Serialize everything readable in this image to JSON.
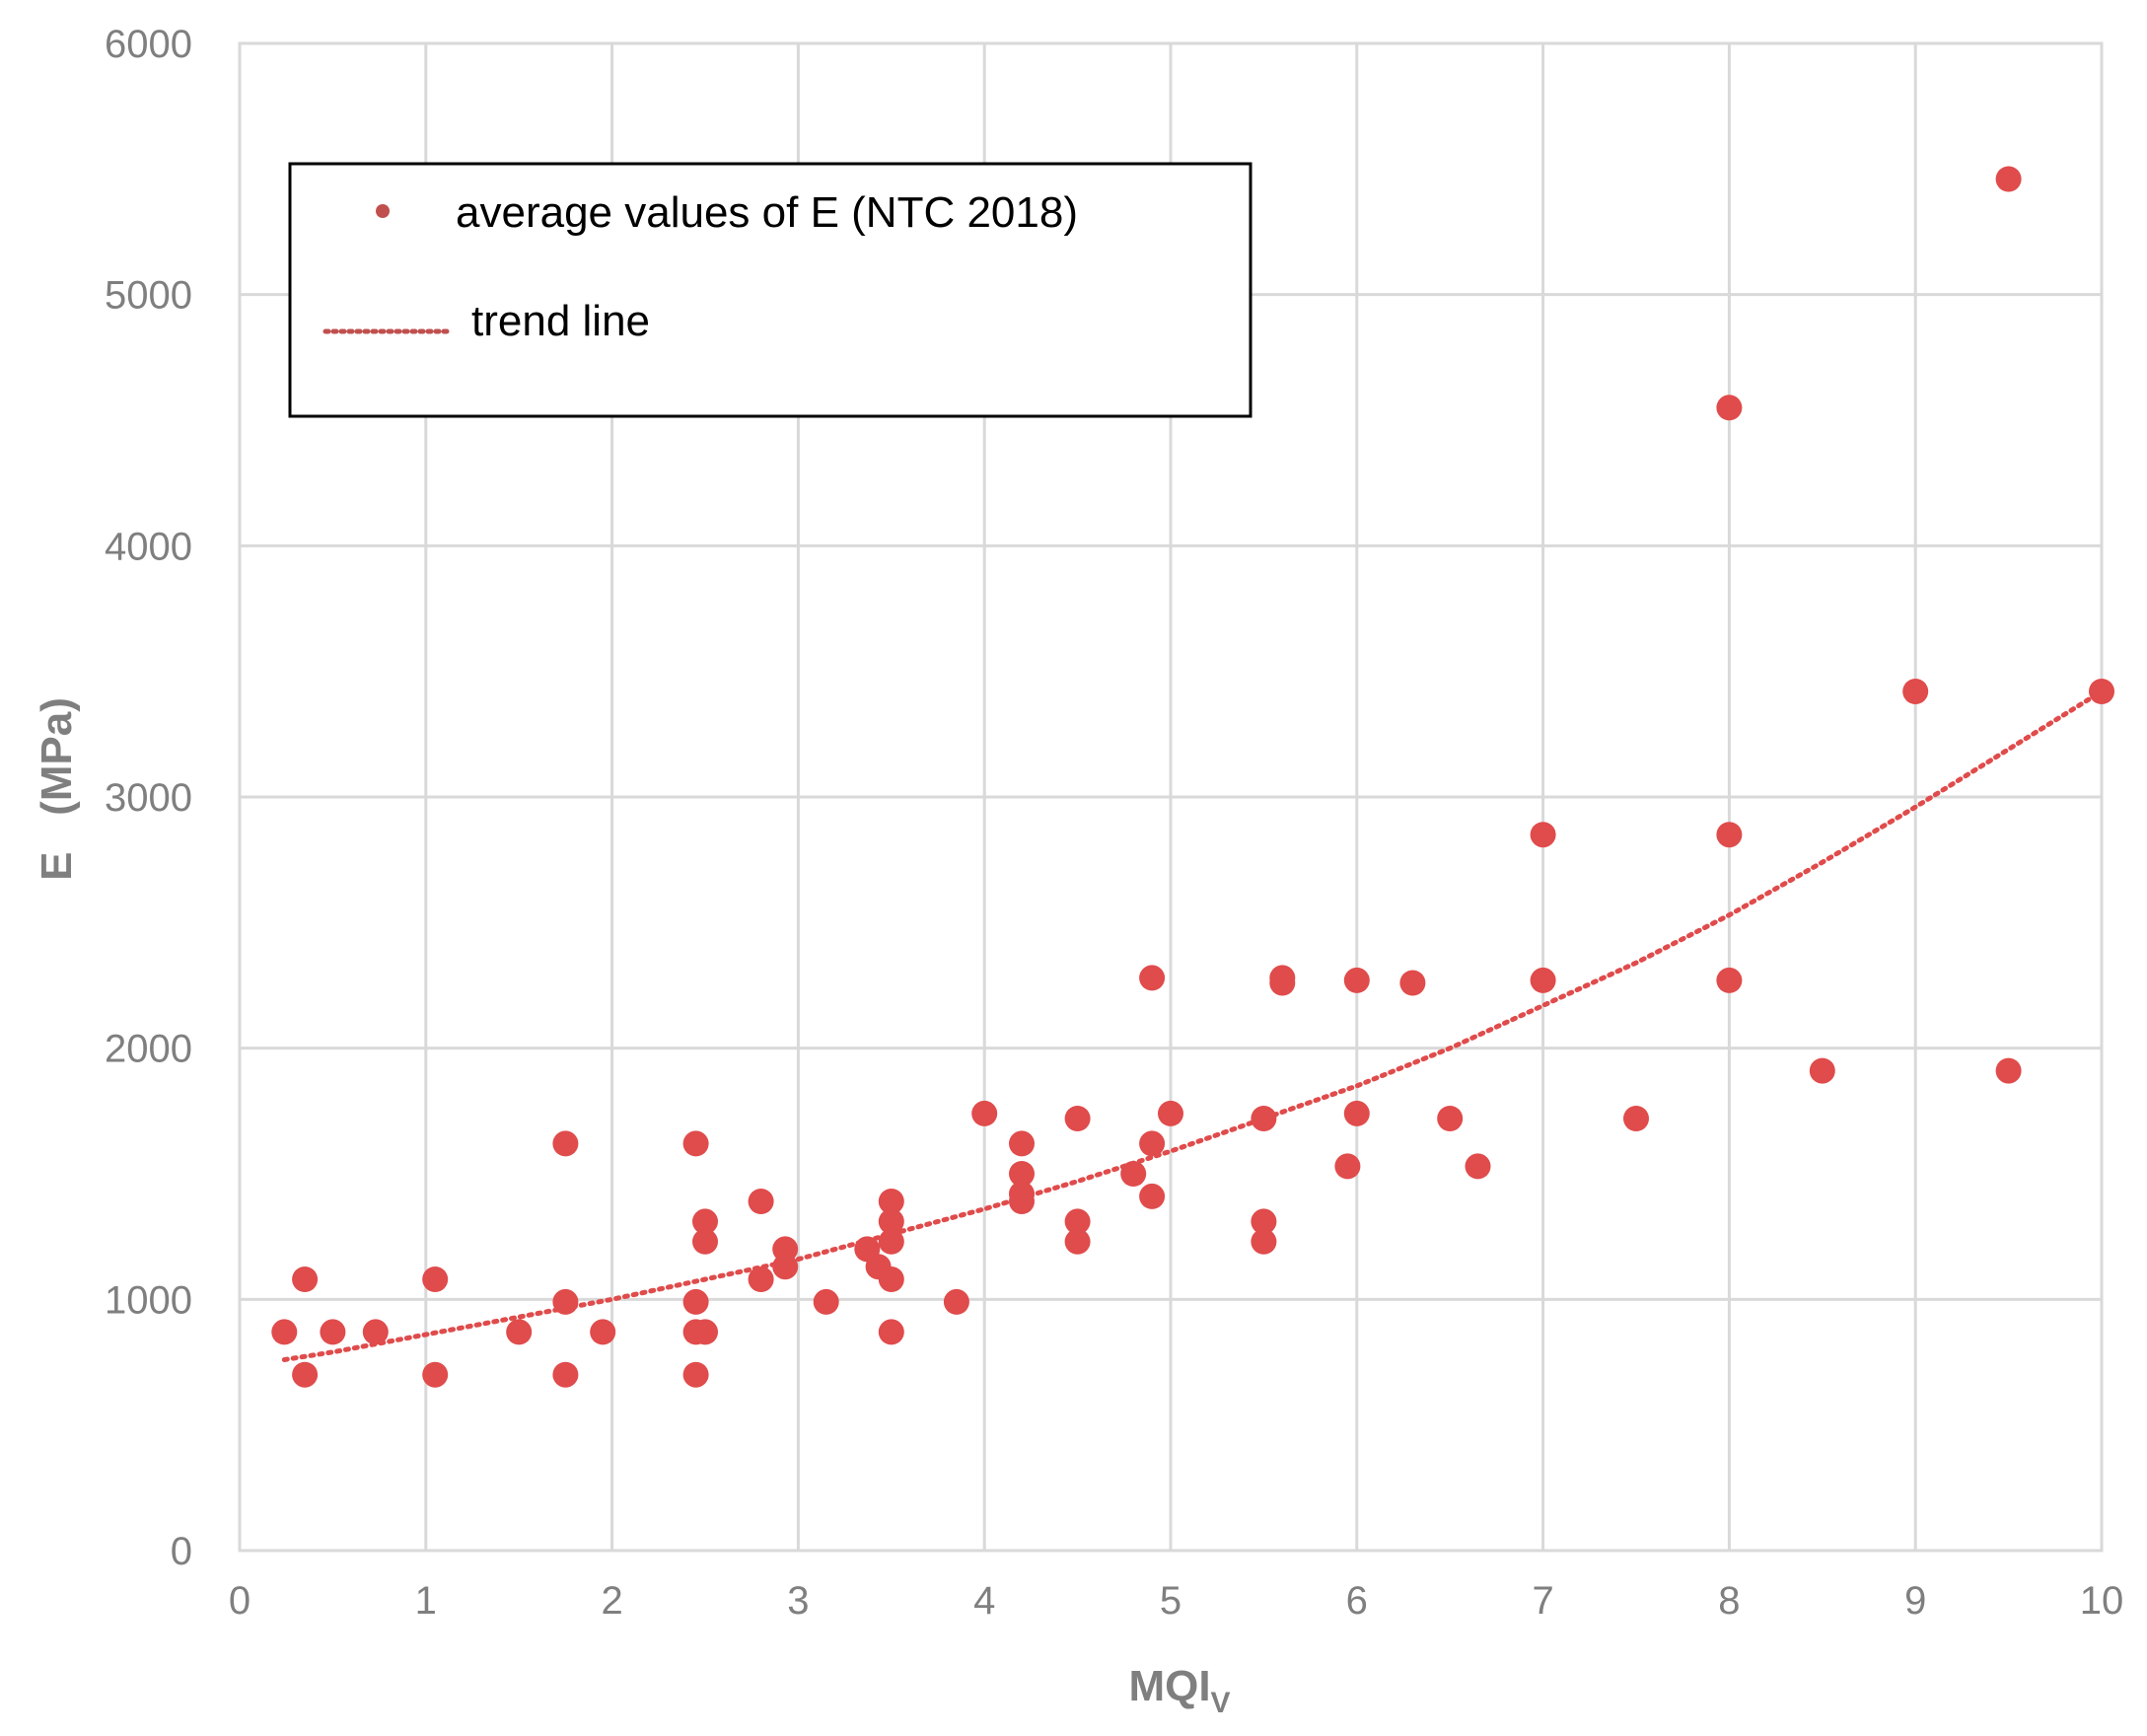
{
  "chart_data": {
    "type": "scatter",
    "xlabel_main": "MQI",
    "xlabel_sub": "V",
    "ylabel": "E   (MPa)",
    "xlim": [
      0,
      10
    ],
    "ylim": [
      0,
      6000
    ],
    "x_ticks": [
      0,
      1,
      2,
      3,
      4,
      5,
      6,
      7,
      8,
      9,
      10
    ],
    "y_ticks": [
      0,
      1000,
      2000,
      3000,
      4000,
      5000,
      6000
    ],
    "grid": true,
    "legend_position": "top-left",
    "series": [
      {
        "name": "average values of E (NTC 2018)",
        "kind": "points",
        "color": "#e04b4b",
        "legend_marker_color": "#c0504d",
        "points": [
          [
            0.24,
            870
          ],
          [
            0.35,
            1080
          ],
          [
            0.35,
            700
          ],
          [
            0.5,
            870
          ],
          [
            0.73,
            870
          ],
          [
            1.05,
            1080
          ],
          [
            1.05,
            700
          ],
          [
            1.5,
            870
          ],
          [
            1.75,
            1620
          ],
          [
            1.75,
            990
          ],
          [
            1.75,
            700
          ],
          [
            1.95,
            870
          ],
          [
            2.45,
            1620
          ],
          [
            2.45,
            990
          ],
          [
            2.45,
            870
          ],
          [
            2.45,
            700
          ],
          [
            2.5,
            1310
          ],
          [
            2.5,
            1230
          ],
          [
            2.5,
            870
          ],
          [
            2.8,
            1390
          ],
          [
            2.8,
            1080
          ],
          [
            2.93,
            1200
          ],
          [
            2.93,
            1130
          ],
          [
            3.15,
            990
          ],
          [
            3.37,
            1200
          ],
          [
            3.43,
            1130
          ],
          [
            3.5,
            1390
          ],
          [
            3.5,
            1310
          ],
          [
            3.5,
            1230
          ],
          [
            3.5,
            1080
          ],
          [
            3.5,
            870
          ],
          [
            3.85,
            990
          ],
          [
            4.0,
            1740
          ],
          [
            4.2,
            1620
          ],
          [
            4.2,
            1500
          ],
          [
            4.2,
            1420
          ],
          [
            4.2,
            1390
          ],
          [
            4.5,
            1720
          ],
          [
            4.5,
            1310
          ],
          [
            4.5,
            1230
          ],
          [
            4.8,
            1500
          ],
          [
            4.9,
            2280
          ],
          [
            4.9,
            1620
          ],
          [
            4.9,
            1410
          ],
          [
            5.0,
            1740
          ],
          [
            5.5,
            1720
          ],
          [
            5.5,
            1310
          ],
          [
            5.5,
            1230
          ],
          [
            5.6,
            2280
          ],
          [
            5.6,
            2260
          ],
          [
            5.95,
            1530
          ],
          [
            6.0,
            2270
          ],
          [
            6.0,
            1740
          ],
          [
            6.3,
            2260
          ],
          [
            6.5,
            1720
          ],
          [
            6.65,
            1530
          ],
          [
            7.0,
            2850
          ],
          [
            7.0,
            2270
          ],
          [
            7.5,
            1720
          ],
          [
            8.0,
            4550
          ],
          [
            8.0,
            2850
          ],
          [
            8.0,
            2270
          ],
          [
            8.5,
            1910
          ],
          [
            9.0,
            3420
          ],
          [
            9.5,
            5460
          ],
          [
            9.5,
            1910
          ],
          [
            10.0,
            3420
          ]
        ]
      },
      {
        "name": "trend line",
        "kind": "dotted-line",
        "color": "#e04b4b",
        "legend_color": "#c0504d",
        "x": [
          0.24,
          0.5,
          1,
          1.5,
          2,
          2.5,
          3,
          3.5,
          4,
          4.5,
          5,
          5.5,
          6,
          6.5,
          7,
          7.5,
          8,
          8.5,
          9,
          9.5,
          10
        ],
        "y": [
          760,
          790,
          860,
          930,
          1000,
          1080,
          1160,
          1260,
          1360,
          1470,
          1590,
          1720,
          1850,
          2000,
          2170,
          2340,
          2530,
          2740,
          2960,
          3190,
          3420
        ]
      }
    ]
  }
}
